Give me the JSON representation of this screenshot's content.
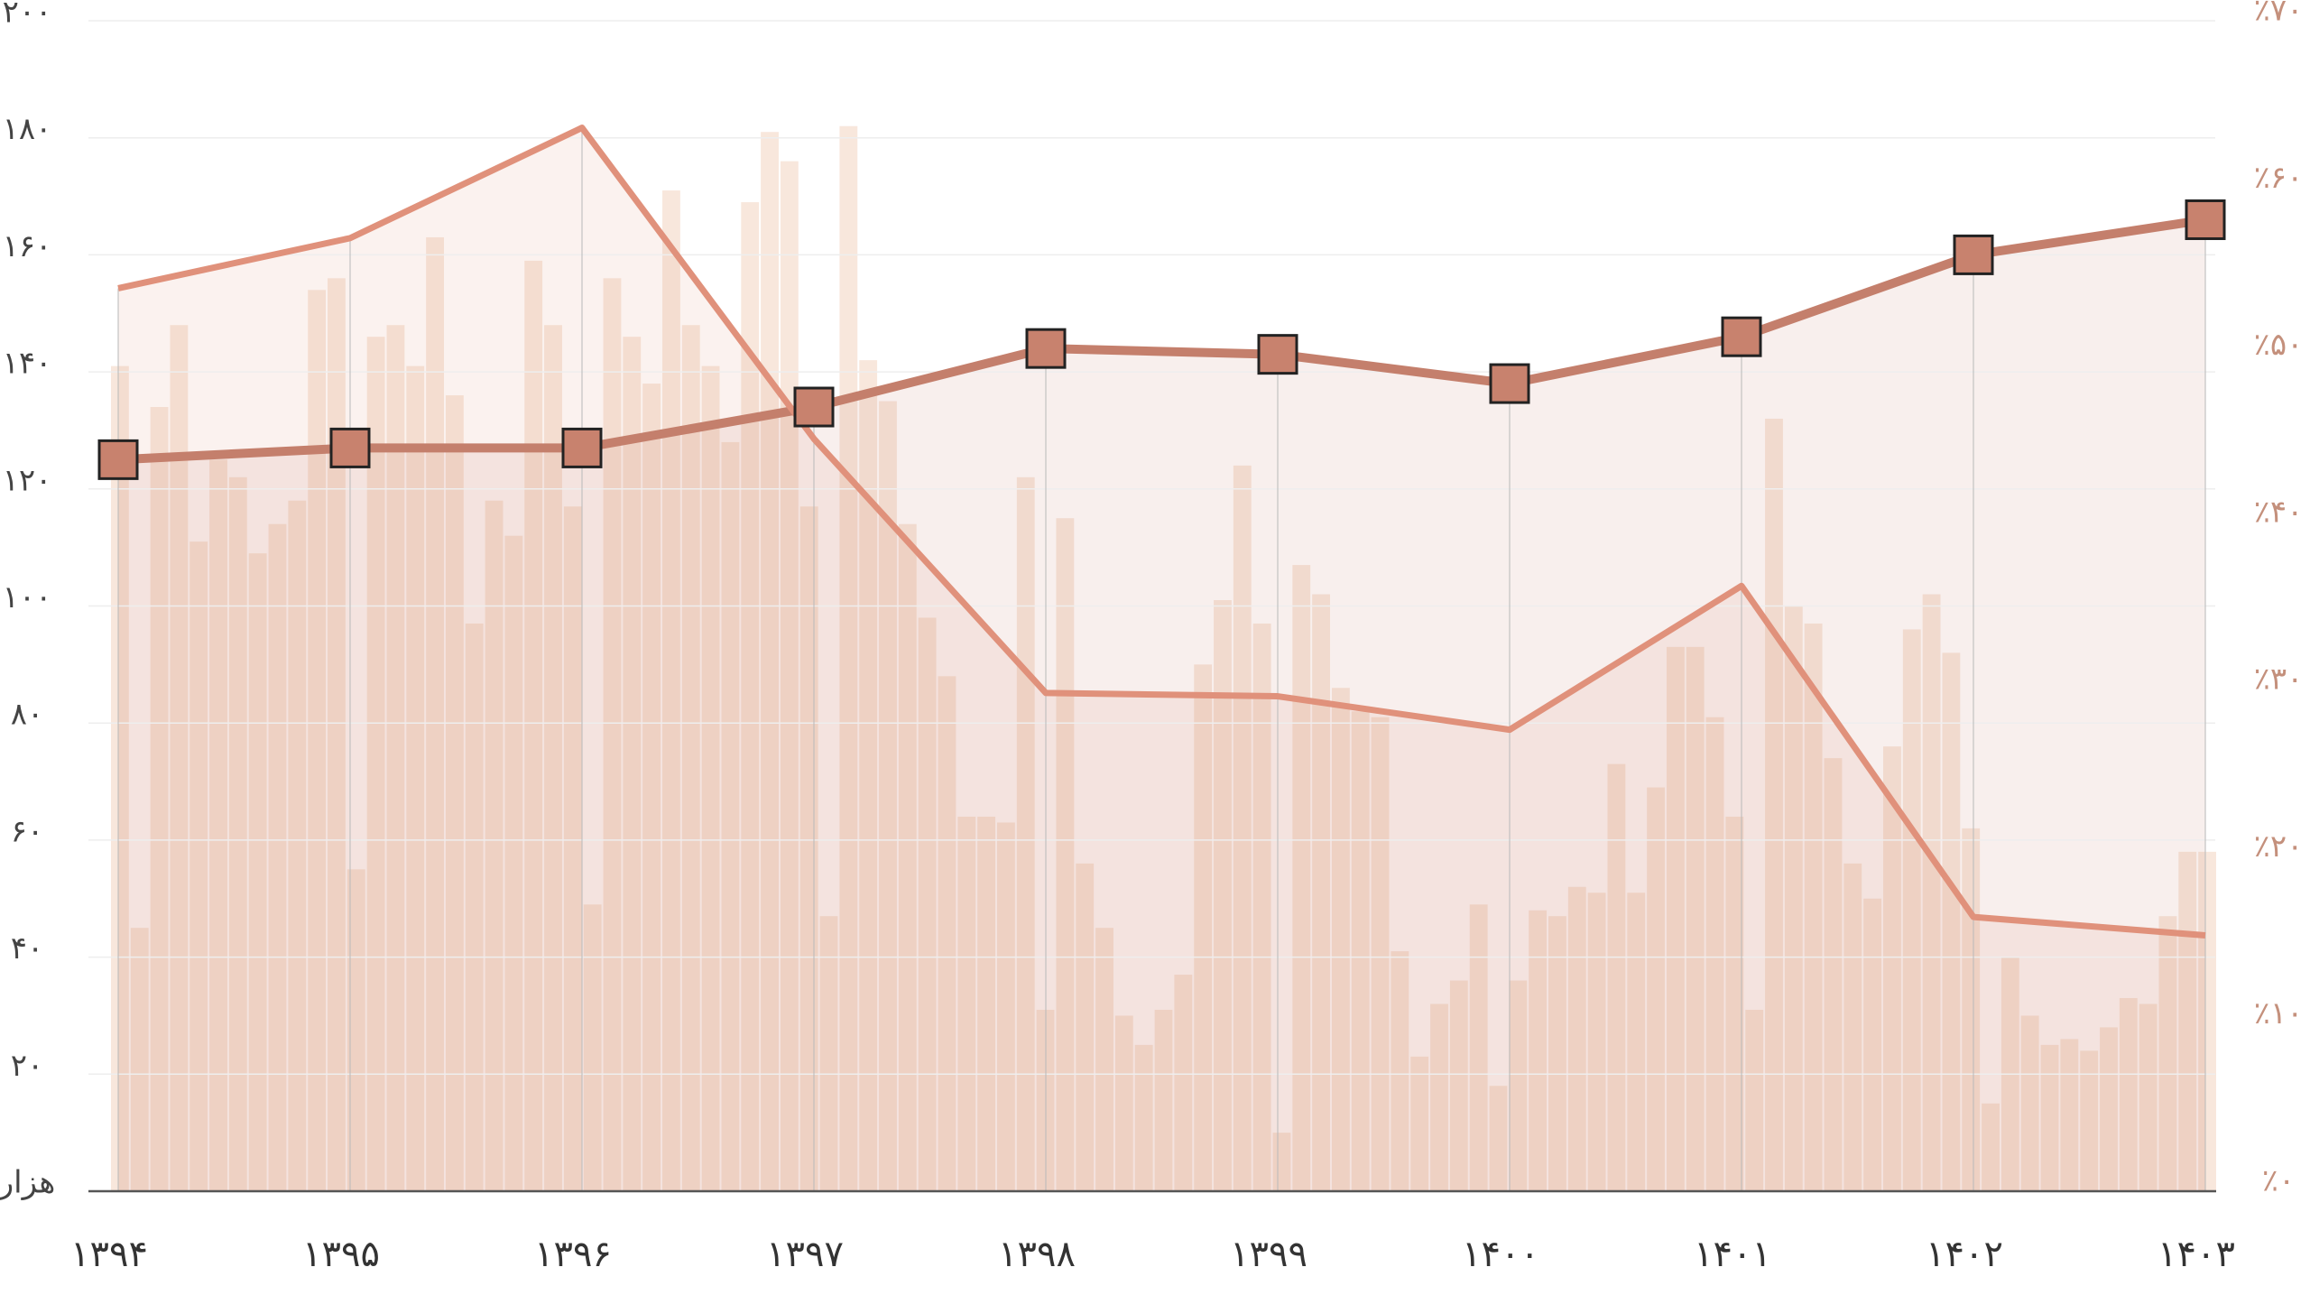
{
  "chart_data": {
    "type": "line",
    "categories": [
      "۱۳۹۴",
      "۱۳۹۵",
      "۱۳۹۶",
      "۱۳۹۷",
      "۱۳۹۸",
      "۱۳۹۹",
      "۱۴۰۰",
      "۱۴۰۱",
      "۱۴۰۲",
      "۱۴۰۳"
    ],
    "series": [
      {
        "color": "#c47f6c",
        "marker_color": "#c8826e",
        "values": [
          125,
          127,
          127,
          134,
          144,
          143,
          138,
          146,
          160,
          166
        ]
      },
      {
        "color": "#e0917b",
        "axis": "y2",
        "values": [
          54,
          57,
          63.6,
          45,
          29.8,
          29.6,
          27.6,
          36.2,
          16.4,
          15.3
        ]
      }
    ],
    "bars": {
      "color": "#f3d4bf",
      "values": [
        141,
        45,
        134,
        148,
        111,
        125,
        122,
        109,
        114,
        118,
        154,
        156,
        55,
        146,
        148,
        141,
        163,
        136,
        97,
        118,
        112,
        159,
        148,
        117,
        49,
        156,
        146,
        138,
        171,
        148,
        141,
        128,
        169,
        181,
        176,
        117,
        47,
        182,
        142,
        135,
        114,
        98,
        88,
        64,
        64,
        63,
        122,
        31,
        115,
        56,
        45,
        30,
        25,
        31,
        37,
        90,
        101,
        124,
        97,
        10,
        107,
        102,
        86,
        82,
        81,
        41,
        23,
        32,
        36,
        49,
        18,
        36,
        48,
        47,
        52,
        51,
        73,
        51,
        69,
        93,
        93,
        81,
        64,
        31,
        132,
        100,
        97,
        74,
        56,
        50,
        76,
        96,
        102,
        92,
        62,
        15,
        40,
        30,
        25,
        26,
        24,
        28,
        33,
        32,
        47,
        58,
        58
      ]
    },
    "ylim": [
      0,
      200
    ],
    "yticks": [
      {
        "value": 0,
        "label": "هزار"
      },
      {
        "value": 20,
        "label": "۲۰"
      },
      {
        "value": 40,
        "label": "۴۰"
      },
      {
        "value": 60,
        "label": "۶۰"
      },
      {
        "value": 80,
        "label": "۸۰"
      },
      {
        "value": 100,
        "label": "۱۰۰"
      },
      {
        "value": 120,
        "label": "۱۲۰"
      },
      {
        "value": 140,
        "label": "۱۴۰"
      },
      {
        "value": 160,
        "label": "۱۶۰"
      },
      {
        "value": 180,
        "label": "۱۸۰"
      },
      {
        "value": 200,
        "label": "۲۰۰"
      }
    ],
    "y2lim": [
      0,
      70
    ],
    "y2ticks": [
      {
        "value": 0,
        "label": "٪۰"
      },
      {
        "value": 10,
        "label": "٪۱۰"
      },
      {
        "value": 20,
        "label": "٪۲۰"
      },
      {
        "value": 30,
        "label": "٪۳۰"
      },
      {
        "value": 40,
        "label": "٪۴۰"
      },
      {
        "value": 50,
        "label": "٪۵۰"
      },
      {
        "value": 60,
        "label": "٪۶۰"
      },
      {
        "value": 70,
        "label": "٪۷۰"
      }
    ],
    "grid": true
  }
}
